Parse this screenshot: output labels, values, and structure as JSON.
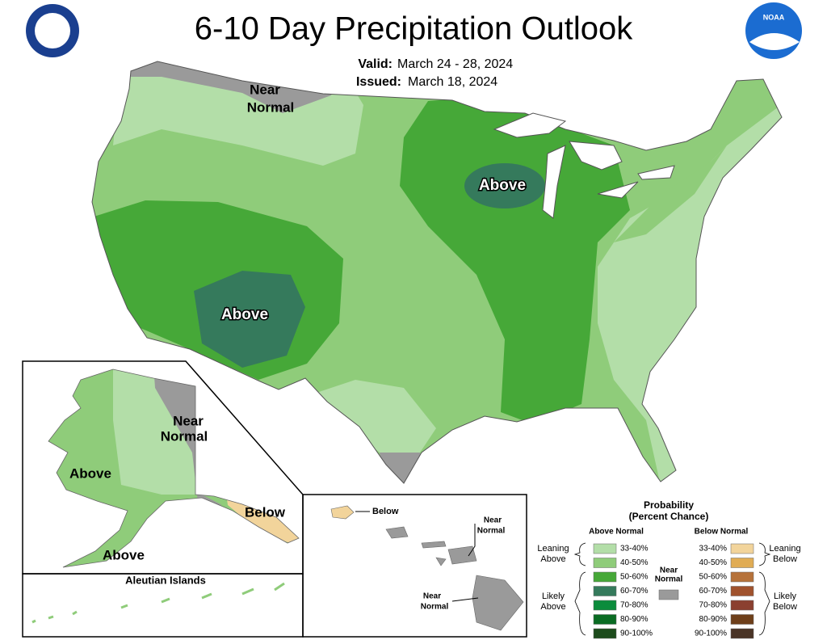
{
  "header": {
    "title": "6-10 Day Precipitation Outlook",
    "valid_label": "Valid:",
    "valid_dates": "March 24 - 28, 2024",
    "issued_label": "Issued:",
    "issued_date": "March 18, 2024",
    "logo_text": "NOAA"
  },
  "map_labels": {
    "conus": [
      {
        "lines": [
          "Near",
          "Normal"
        ]
      },
      {
        "lines": [
          "Above"
        ]
      },
      {
        "lines": [
          "Above"
        ]
      }
    ],
    "alaska": [
      {
        "lines": [
          "Near",
          "Normal"
        ]
      },
      {
        "lines": [
          "Above"
        ]
      },
      {
        "lines": [
          "Below"
        ]
      },
      {
        "lines": [
          "Above"
        ]
      }
    ],
    "aleutian_title": "Aleutian Islands",
    "hawaii": [
      {
        "lines": [
          "Below"
        ]
      },
      {
        "lines": [
          "Near",
          "Normal"
        ]
      },
      {
        "lines": [
          "Near",
          "Normal"
        ]
      }
    ]
  },
  "legend": {
    "title": [
      "Probability",
      "(Percent Chance)"
    ],
    "above_header": "Above Normal",
    "below_header": "Below Normal",
    "near_label": [
      "Near",
      "Normal"
    ],
    "near_color": "#9a9a9a",
    "above_groups": [
      {
        "lines": [
          "Leaning",
          "Above"
        ]
      },
      {
        "lines": [
          "Likely",
          "Above"
        ]
      }
    ],
    "below_groups": [
      {
        "lines": [
          "Leaning",
          "Below"
        ]
      },
      {
        "lines": [
          "Likely",
          "Below"
        ]
      }
    ],
    "above_bins": [
      {
        "label": "33-40%",
        "color": "#b3dea8"
      },
      {
        "label": "40-50%",
        "color": "#8fcc7a"
      },
      {
        "label": "50-60%",
        "color": "#46a838"
      },
      {
        "label": "60-70%",
        "color": "#357a5c"
      },
      {
        "label": "70-80%",
        "color": "#0b8c3c"
      },
      {
        "label": "80-90%",
        "color": "#0a6c23"
      },
      {
        "label": "90-100%",
        "color": "#1d4c1c"
      }
    ],
    "below_bins": [
      {
        "label": "33-40%",
        "color": "#f2d49b"
      },
      {
        "label": "40-50%",
        "color": "#e0ac54"
      },
      {
        "label": "50-60%",
        "color": "#b6723a"
      },
      {
        "label": "60-70%",
        "color": "#a0522d"
      },
      {
        "label": "70-80%",
        "color": "#8b4030"
      },
      {
        "label": "80-90%",
        "color": "#6e3f1a"
      },
      {
        "label": "90-100%",
        "color": "#4a3426"
      }
    ]
  }
}
